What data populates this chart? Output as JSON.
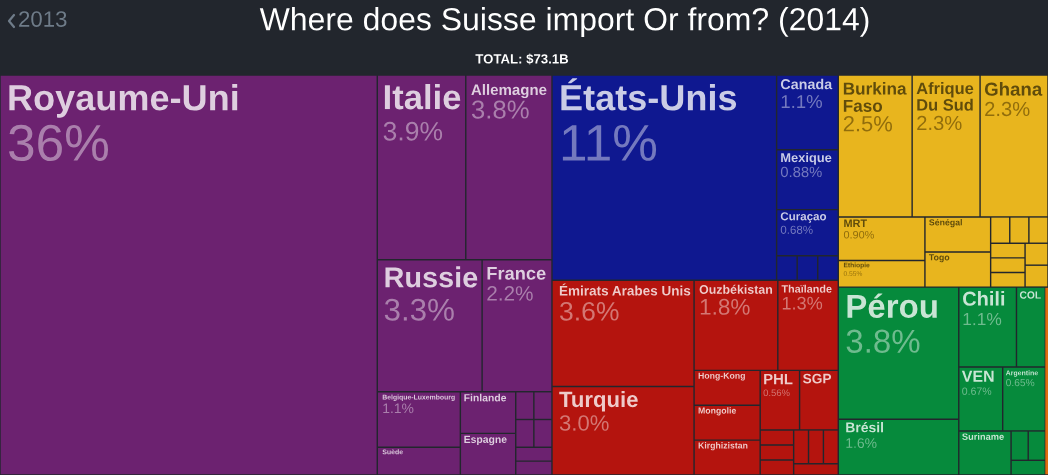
{
  "chart_data": {
    "type": "other",
    "title": "Where does Suisse import Or from? (2014)",
    "subtitle": "TOTAL: $73.1B",
    "annotations": [
      "2013"
    ],
    "categories": [
      "Royaume-Uni",
      "Italie",
      "Allemagne",
      "Russie",
      "France",
      "Belgique-Luxembourg",
      "Suède",
      "Finlande",
      "Espagne",
      null,
      null,
      null,
      null,
      null,
      null,
      "États-Unis",
      "Canada",
      "Mexique",
      "Curaçao",
      null,
      null,
      null,
      "Émirats Arabes Unis",
      "Turquie",
      "Ouzbékistan",
      "Thaïlande",
      "Hong-Kong",
      "Mongolie",
      "Kirghizistan",
      "PHL",
      "SGP",
      null,
      null,
      null,
      null,
      null,
      null,
      null,
      "Burkina Faso",
      "Afrique Du Sud",
      "Ghana",
      "MRT",
      "Ethiopie",
      "Sénégal",
      "Togo",
      null,
      null,
      null,
      null,
      null,
      null,
      null,
      null,
      "Pérou",
      "Brésil",
      "Chili",
      "COL",
      "VEN",
      "Argentine",
      "Suriname",
      null,
      null,
      null,
      null
    ],
    "values": [
      36,
      3.9,
      3.8,
      3.3,
      2.2,
      1.1,
      null,
      null,
      null,
      null,
      null,
      null,
      null,
      null,
      null,
      11,
      1.1,
      0.88,
      0.68,
      null,
      null,
      null,
      3.6,
      3.0,
      1.8,
      1.3,
      null,
      null,
      null,
      0.56,
      null,
      null,
      null,
      null,
      null,
      null,
      null,
      null,
      2.5,
      2.3,
      2.3,
      0.9,
      0.55,
      null,
      null,
      null,
      null,
      null,
      null,
      null,
      null,
      null,
      null,
      3.8,
      1.6,
      1.1,
      null,
      0.67,
      0.65,
      null,
      null,
      null,
      null,
      null
    ],
    "value_labels": [
      "36%",
      "3.9%",
      "3.8%",
      "3.3%",
      "2.2%",
      "1.1%",
      null,
      null,
      null,
      null,
      null,
      null,
      null,
      null,
      null,
      "11%",
      "1.1%",
      "0.88%",
      "0.68%",
      null,
      null,
      null,
      "3.6%",
      "3.0%",
      "1.8%",
      "1.3%",
      null,
      null,
      null,
      "0.56%",
      null,
      null,
      null,
      null,
      null,
      null,
      null,
      null,
      "2.5%",
      "2.3%",
      "2.3%",
      "0.90%",
      "0.55%",
      null,
      null,
      null,
      null,
      null,
      null,
      null,
      null,
      null,
      null,
      "3.8%",
      "1.6%",
      "1.1%",
      null,
      "0.67%",
      "0.65%",
      null,
      null,
      null,
      null,
      null
    ],
    "colors": [
      "#6c2270",
      "#6c2270",
      "#6c2270",
      "#6c2270",
      "#6c2270",
      "#6c2270",
      "#6c2270",
      "#6c2270",
      "#6c2270",
      "#6c2270",
      "#6c2270",
      "#6c2270",
      "#6c2270",
      "#6c2270",
      "#6c2270",
      "#0f1890",
      "#0f1890",
      "#0f1890",
      "#0f1890",
      "#0f1890",
      "#0f1890",
      "#0f1890",
      "#b4140e",
      "#b4140e",
      "#b4140e",
      "#b4140e",
      "#b4140e",
      "#b4140e",
      "#b4140e",
      "#b4140e",
      "#b4140e",
      "#b4140e",
      "#b4140e",
      "#b4140e",
      "#b4140e",
      "#b4140e",
      "#b4140e",
      "#b4140e",
      "#e8b51e",
      "#e8b51e",
      "#e8b51e",
      "#e8b51e",
      "#e8b51e",
      "#e8b51e",
      "#e8b51e",
      "#e8b51e",
      "#e8b51e",
      "#e8b51e",
      "#e8b51e",
      "#e8b51e",
      "#e8b51e",
      "#e8b51e",
      "#e8b51e",
      "#068a3c",
      "#068a3c",
      "#068a3c",
      "#068a3c",
      "#068a3c",
      "#068a3c",
      "#068a3c",
      "#068a3c",
      "#068a3c",
      "#068a3c",
      "#de6e0f"
    ]
  }
}
